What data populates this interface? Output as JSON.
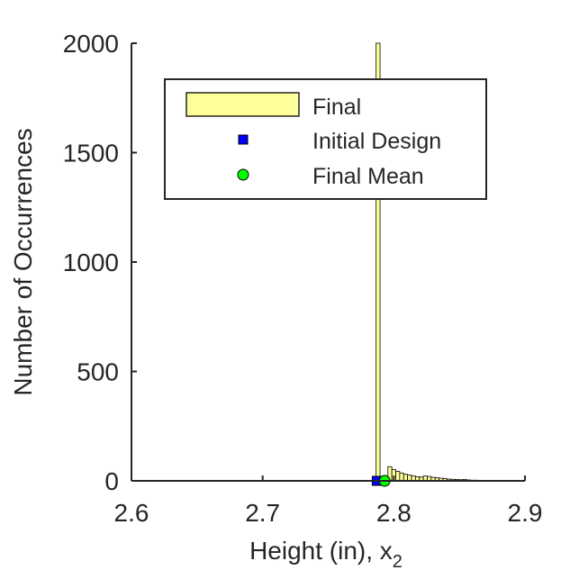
{
  "chart_data": {
    "type": "bar",
    "title": "",
    "xlabel": "Height (in), x",
    "xlabel_subscript": "2",
    "ylabel": "Number of Occurrences",
    "xlim": [
      2.6,
      2.9
    ],
    "ylim": [
      0,
      2000
    ],
    "xticks": [
      2.6,
      2.7,
      2.8,
      2.9
    ],
    "xtick_labels": [
      "2.6",
      "2.7",
      "2.8",
      "2.9"
    ],
    "yticks": [
      0,
      500,
      1000,
      1500,
      2000
    ],
    "ytick_labels": [
      "0",
      "500",
      "1000",
      "1500",
      "2000"
    ],
    "grid": false,
    "legend_position": "top",
    "series": [
      {
        "name": "Final",
        "kind": "histogram",
        "color": "#FFFF99",
        "edge_color": "#000000",
        "bins": [
          {
            "x0": 2.7865,
            "x1": 2.7895,
            "count": 2000
          },
          {
            "x0": 2.7895,
            "x1": 2.7925,
            "count": 12
          },
          {
            "x0": 2.7925,
            "x1": 2.7955,
            "count": 8
          },
          {
            "x0": 2.7955,
            "x1": 2.7985,
            "count": 65
          },
          {
            "x0": 2.7985,
            "x1": 2.8015,
            "count": 52
          },
          {
            "x0": 2.8015,
            "x1": 2.8045,
            "count": 43
          },
          {
            "x0": 2.8045,
            "x1": 2.8075,
            "count": 36
          },
          {
            "x0": 2.8075,
            "x1": 2.8105,
            "count": 30
          },
          {
            "x0": 2.8105,
            "x1": 2.8135,
            "count": 26
          },
          {
            "x0": 2.8135,
            "x1": 2.8165,
            "count": 22
          },
          {
            "x0": 2.8165,
            "x1": 2.8195,
            "count": 19
          },
          {
            "x0": 2.8195,
            "x1": 2.8225,
            "count": 17
          },
          {
            "x0": 2.8225,
            "x1": 2.8255,
            "count": 22
          },
          {
            "x0": 2.8255,
            "x1": 2.8285,
            "count": 20
          },
          {
            "x0": 2.8285,
            "x1": 2.8315,
            "count": 16
          },
          {
            "x0": 2.8315,
            "x1": 2.8345,
            "count": 14
          },
          {
            "x0": 2.8345,
            "x1": 2.8375,
            "count": 12
          },
          {
            "x0": 2.8375,
            "x1": 2.8405,
            "count": 10
          },
          {
            "x0": 2.8405,
            "x1": 2.8435,
            "count": 8
          },
          {
            "x0": 2.8435,
            "x1": 2.8465,
            "count": 7
          },
          {
            "x0": 2.8465,
            "x1": 2.8495,
            "count": 6
          },
          {
            "x0": 2.8495,
            "x1": 2.8525,
            "count": 5
          },
          {
            "x0": 2.8525,
            "x1": 2.8555,
            "count": 6
          },
          {
            "x0": 2.8555,
            "x1": 2.8585,
            "count": 4
          },
          {
            "x0": 2.8585,
            "x1": 2.8615,
            "count": 3
          },
          {
            "x0": 2.8615,
            "x1": 2.8645,
            "count": 3
          },
          {
            "x0": 2.8645,
            "x1": 2.8675,
            "count": 2
          },
          {
            "x0": 2.8675,
            "x1": 2.8705,
            "count": 2
          },
          {
            "x0": 2.8705,
            "x1": 2.8735,
            "count": 1
          },
          {
            "x0": 2.8735,
            "x1": 2.8765,
            "count": 1
          }
        ]
      },
      {
        "name": "Initial Design",
        "kind": "marker",
        "marker": "square",
        "color": "#0000FF",
        "points": [
          {
            "x": 2.787,
            "y": 0
          }
        ]
      },
      {
        "name": "Final Mean",
        "kind": "marker",
        "marker": "circle",
        "color": "#00FF00",
        "points": [
          {
            "x": 2.793,
            "y": 0
          }
        ]
      }
    ]
  }
}
